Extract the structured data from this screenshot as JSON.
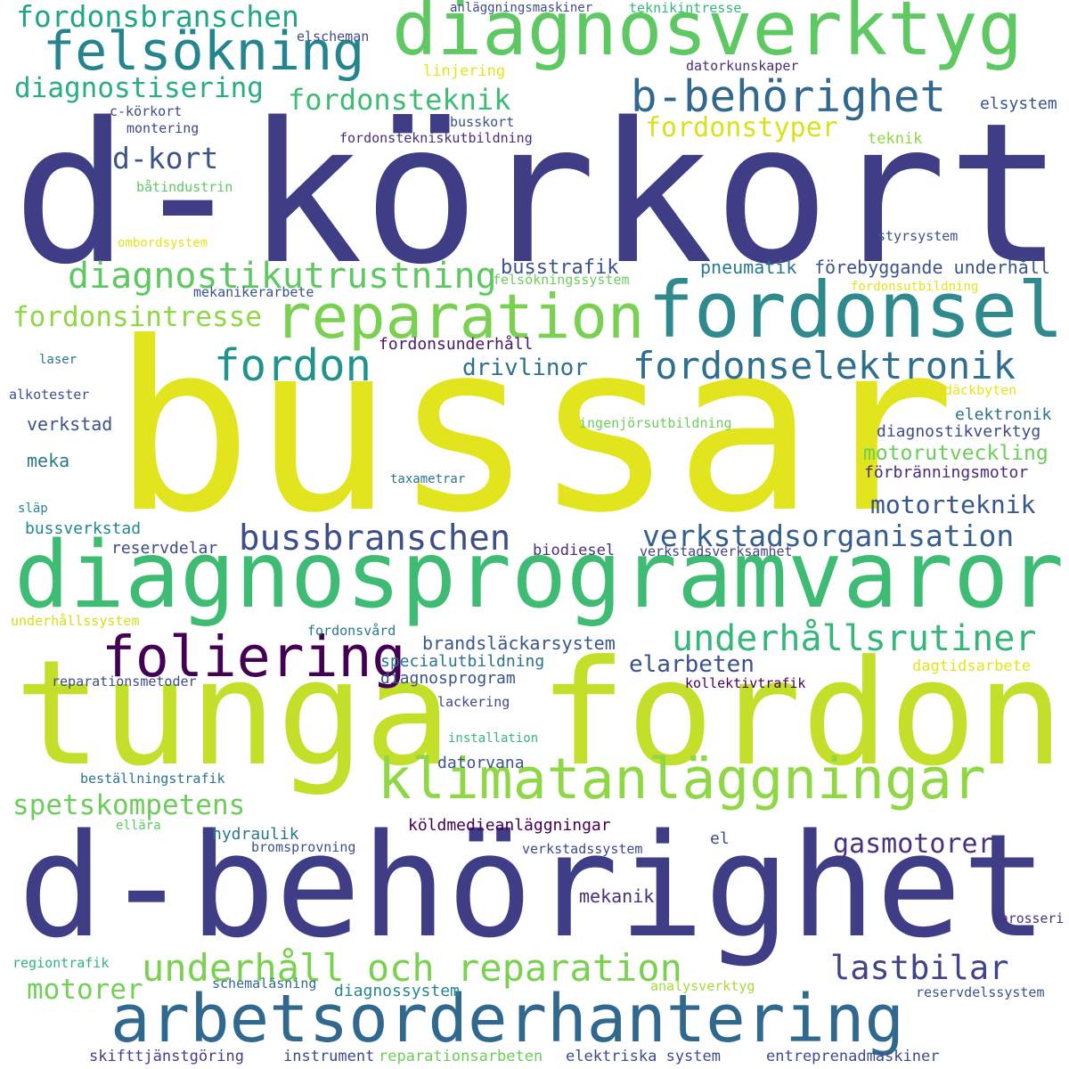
{
  "words": [
    {
      "text": "d-körkort",
      "color": "#3e3d85"
    },
    {
      "text": "bussar",
      "color": "#e2e41d"
    },
    {
      "text": "tunga fordon",
      "color": "#c4df2a"
    },
    {
      "text": "d-behörighet",
      "color": "#3e3d85"
    },
    {
      "text": "diagnosprogramvaror",
      "color": "#3fbc73"
    },
    {
      "text": "diagnosverktyg",
      "color": "#5ec962"
    },
    {
      "text": "arbetsorderhantering",
      "color": "#31688e"
    },
    {
      "text": "fordonsel",
      "color": "#2e8a8c"
    },
    {
      "text": "reparation",
      "color": "#7ad151"
    },
    {
      "text": "klimatanläggningar",
      "color": "#8fd744"
    },
    {
      "text": "b-behörighet",
      "color": "#31688e"
    },
    {
      "text": "felsökning",
      "color": "#25858e"
    },
    {
      "text": "folierin​g",
      "color": "#440154"
    },
    {
      "text": "underhåll och reparation",
      "color": "#7ad151"
    },
    {
      "text": "fordonselektronik",
      "color": "#2e6e8e"
    },
    {
      "text": "fordon",
      "color": "#20938c"
    },
    {
      "text": "diagnostikutrustning",
      "color": "#5ec962"
    },
    {
      "text": "underhållsrutiner",
      "color": "#35b779"
    },
    {
      "text": "bussbranschen",
      "color": "#3d4f8a"
    },
    {
      "text": "verkstadsorganisation",
      "color": "#355f8d"
    },
    {
      "text": "fordonsteknik",
      "color": "#3fbc73"
    },
    {
      "text": "fordonsbranschen",
      "color": "#21a685"
    },
    {
      "text": "diagnostisering",
      "color": "#28ae80"
    },
    {
      "text": "d-kort",
      "color": "#3b528b"
    },
    {
      "text": "fordonstyper",
      "color": "#d8e219"
    },
    {
      "text": "fordonsintresse",
      "color": "#8fd744"
    },
    {
      "text": "spetskompetens",
      "color": "#6ccd5a"
    },
    {
      "text": "lastbilar",
      "color": "#414487"
    },
    {
      "text": "motorer",
      "color": "#73d056"
    },
    {
      "text": "gasmotorer",
      "color": "#46327e"
    },
    {
      "text": "motorteknik",
      "color": "#39568c"
    },
    {
      "text": "elarbeten",
      "color": "#3b528b"
    },
    {
      "text": "drivlinor",
      "color": "#2c728e"
    },
    {
      "text": "busstrafik",
      "color": "#3b528b"
    },
    {
      "text": "pneumatik",
      "color": "#29798e"
    },
    {
      "text": "förebyggande underhåll",
      "color": "#3b528b"
    },
    {
      "text": "motorutveckling",
      "color": "#6ccd5a"
    },
    {
      "text": "diagnostikverktyg",
      "color": "#3e4c8a"
    },
    {
      "text": "elektronik",
      "color": "#2e6f8e"
    },
    {
      "text": "förbränningsmotor",
      "color": "#472d7b"
    },
    {
      "text": "fordonsunderhåll",
      "color": "#48186a"
    },
    {
      "text": "verkstad",
      "color": "#3b528b"
    },
    {
      "text": "meka",
      "color": "#2a788e"
    },
    {
      "text": "bussverkstad",
      "color": "#25858e"
    },
    {
      "text": "reservdelar",
      "color": "#3e4a89"
    },
    {
      "text": "biodiesel",
      "color": "#472f7d"
    },
    {
      "text": "verkstadsverksamhet",
      "color": "#433e85"
    },
    {
      "text": "brandsläckarsystem",
      "color": "#39568c"
    },
    {
      "text": "specialutbildning",
      "color": "#2c728e"
    },
    {
      "text": "diagnosprogram",
      "color": "#3b528b"
    },
    {
      "text": "reparationsmetoder",
      "color": "#3e4c8a"
    },
    {
      "text": "kollektivtrafik",
      "color": "#440154"
    },
    {
      "text": "lackering",
      "color": "#3e4989"
    },
    {
      "text": "installation",
      "color": "#35b779"
    },
    {
      "text": "datorvana",
      "color": "#3b528b"
    },
    {
      "text": "beställningstrafik",
      "color": "#2c728e"
    },
    {
      "text": "ellära",
      "color": "#5ec962"
    },
    {
      "text": "hydraulik",
      "color": "#2a788e"
    },
    {
      "text": "köldmedieanläggningar",
      "color": "#440154"
    },
    {
      "text": "bromsprovning",
      "color": "#3b528b"
    },
    {
      "text": "verkstadssystem",
      "color": "#3e4a89"
    },
    {
      "text": "el",
      "color": "#3e4a89"
    },
    {
      "text": "mekanik",
      "color": "#472f7d"
    },
    {
      "text": "karosseri",
      "color": "#46337f"
    },
    {
      "text": "regiontrafik",
      "color": "#2fb47c"
    },
    {
      "text": "schemaläsning",
      "color": "#31688e"
    },
    {
      "text": "diagnossystem",
      "color": "#25858e"
    },
    {
      "text": "analysverktyg",
      "color": "#a5db36"
    },
    {
      "text": "reservdelssystem",
      "color": "#3b528b"
    },
    {
      "text": "skifttjänstgöring",
      "color": "#433e85"
    },
    {
      "text": "instrument",
      "color": "#3e4989"
    },
    {
      "text": "reparationsarbeten",
      "color": "#6ccd5a"
    },
    {
      "text": "elektriska system",
      "color": "#3e4c8a"
    },
    {
      "text": "entreprenadmaskiner",
      "color": "#3e4c8a"
    },
    {
      "text": "underhållssystem",
      "color": "#d0e11c"
    },
    {
      "text": "fordonsvård",
      "color": "#29798e"
    },
    {
      "text": "dagtidsarbete",
      "color": "#e5e419"
    },
    {
      "text": "taxametrar",
      "color": "#2c728e"
    },
    {
      "text": "släp",
      "color": "#25858e"
    },
    {
      "text": "ingenjörsutbildning",
      "color": "#6ccd5a"
    },
    {
      "text": "däckbyten",
      "color": "#e5e419"
    },
    {
      "text": "alkotester",
      "color": "#3b528b"
    },
    {
      "text": "laser",
      "color": "#2a788e"
    },
    {
      "text": "mekanikerarbete",
      "color": "#3b528b"
    },
    {
      "text": "felsökningssystem",
      "color": "#6ccd5a"
    },
    {
      "text": "fordonsutbildning",
      "color": "#e5e419"
    },
    {
      "text": "styrsystem",
      "color": "#3b528b"
    },
    {
      "text": "ombordsystem",
      "color": "#e5e419"
    },
    {
      "text": "båtindustrin",
      "color": "#5ec962"
    },
    {
      "text": "teknik",
      "color": "#8fd744"
    },
    {
      "text": "fordonstekniskutbildning",
      "color": "#472f7d"
    },
    {
      "text": "montering",
      "color": "#3e4989"
    },
    {
      "text": "busskort",
      "color": "#3b528b"
    },
    {
      "text": "c-körkort",
      "color": "#3e4c8a"
    },
    {
      "text": "elsystem",
      "color": "#3b528b"
    },
    {
      "text": "linjering",
      "color": "#e5e419"
    },
    {
      "text": "datorkunskaper",
      "color": "#472f7d"
    },
    {
      "text": "elscheman",
      "color": "#3e4c8a"
    },
    {
      "text": "anläggningsmaskiner",
      "color": "#3e4c8a"
    },
    {
      "text": "teknikintresse",
      "color": "#35b779"
    }
  ]
}
